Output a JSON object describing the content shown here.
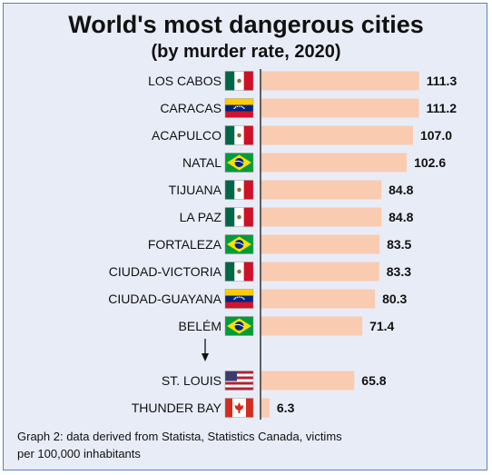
{
  "title": "World's most dangerous cities",
  "subtitle": "(by murder rate, 2020)",
  "note_line1": "Graph 2: data derived from Statista, Statistics Canada, victims",
  "note_line2": "per 100,000 inhabitants",
  "colors": {
    "bar": "#f9cbb0",
    "background": "#e8ecf7",
    "axis": "#333333"
  },
  "chart_data": {
    "type": "bar",
    "orientation": "horizontal",
    "categories": [
      "LOS CABOS",
      "CARACAS",
      "ACAPULCO",
      "NATAL",
      "TIJUANA",
      "LA PAZ",
      "FORTALEZA",
      "CIUDAD-VICTORIA",
      "CIUDAD-GUAYANA",
      "BELÉM",
      "ST. LOUIS",
      "THUNDER BAY"
    ],
    "values": [
      111.3,
      111.2,
      107.0,
      102.6,
      84.8,
      84.8,
      83.5,
      83.3,
      80.3,
      71.4,
      65.8,
      6.3
    ],
    "value_labels": [
      "111.3",
      "111.2",
      "107.0",
      "102.6",
      "84.8",
      "84.8",
      "83.5",
      "83.3",
      "80.3",
      "71.4",
      "65.8",
      "6.3"
    ],
    "flags": [
      "mexico",
      "venezuela",
      "mexico",
      "brazil",
      "mexico",
      "mexico",
      "brazil",
      "mexico",
      "venezuela",
      "brazil",
      "usa",
      "canada"
    ],
    "gap_after_index": 9,
    "gap_marker": "down-arrow",
    "xlim": [
      0,
      115
    ],
    "grid": false,
    "legend": "none"
  }
}
